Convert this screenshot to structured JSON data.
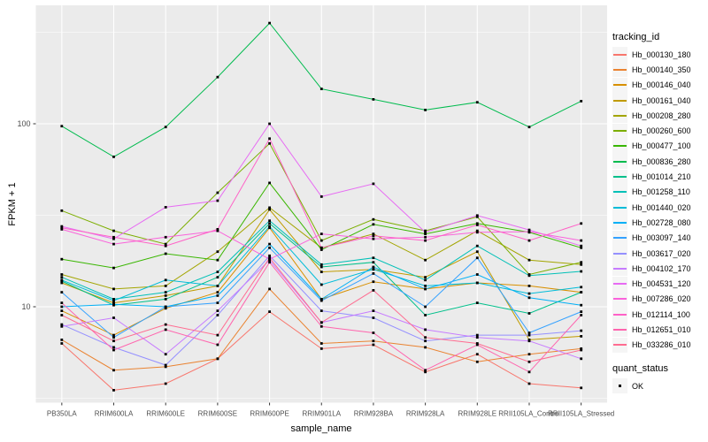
{
  "figure": {
    "background": "#FFFFFF",
    "panel_bg": "#EBEBEB",
    "grid_color": "#FFFFFF",
    "tick_color": "#333333",
    "tick_label_color": "#4D4D4D",
    "axis_title_color": "#000000",
    "point_color": "#000000"
  },
  "legend": {
    "tracking_title": "tracking_id",
    "quant_title": "quant_status",
    "quant_items": [
      {
        "label": "OK"
      }
    ]
  },
  "chart_data": {
    "type": "line",
    "title": "",
    "xlabel": "sample_name",
    "ylabel": "FPKM + 1",
    "y_scale": "log10",
    "ylim": [
      3,
      434
    ],
    "grid": true,
    "legend_position": "right",
    "point_shape": "square",
    "y_major_ticks": [
      {
        "label": "10",
        "value": 10
      },
      {
        "label": "100",
        "value": 100
      }
    ],
    "y_minor_gridlines": [
      3.162,
      31.623,
      316.228
    ],
    "categories": [
      "PB350LA",
      "RRIM600LA",
      "RRIM600LE",
      "RRIM600SE",
      "RRIM600PE",
      "RRIM901LA",
      "RRIM928BA",
      "RRIM928LA",
      "RRIM928LE",
      "RRII105LA_Control",
      "RRII105LA_Stressed"
    ],
    "series": [
      {
        "name": "Hb_000130_180",
        "color": "#F8766D",
        "values": [
          6.3,
          3.5,
          3.8,
          5.2,
          9.4,
          5.9,
          6.2,
          4.4,
          5.5,
          3.8,
          3.6
        ]
      },
      {
        "name": "Hb_000140_350",
        "color": "#EA8331",
        "values": [
          6.6,
          4.5,
          4.7,
          5.2,
          12.5,
          6.3,
          6.5,
          6.0,
          5.0,
          5.5,
          5.9
        ]
      },
      {
        "name": "Hb_000146_040",
        "color": "#D89000",
        "values": [
          9.5,
          7.0,
          9.8,
          12.0,
          27.0,
          11.0,
          13.7,
          12.5,
          13.5,
          13.0,
          12.0
        ]
      },
      {
        "name": "Hb_000161_040",
        "color": "#C09B00",
        "values": [
          13.5,
          10.5,
          11.5,
          13.0,
          34.0,
          15.5,
          16.0,
          14.5,
          20.0,
          6.6,
          6.9
        ]
      },
      {
        "name": "Hb_000208_280",
        "color": "#A3A500",
        "values": [
          15.0,
          12.5,
          13.0,
          20.0,
          34.8,
          21.0,
          25.0,
          18.0,
          26.0,
          18.0,
          17.0
        ]
      },
      {
        "name": "Hb_000260_600",
        "color": "#7CAE00",
        "values": [
          33.5,
          26.0,
          22.0,
          42.0,
          78.0,
          23.0,
          30.0,
          26.0,
          31.0,
          15.0,
          17.5
        ]
      },
      {
        "name": "Hb_000477_100",
        "color": "#39B600",
        "values": [
          18.2,
          16.3,
          19.5,
          18.0,
          47.5,
          20.5,
          28.2,
          25.0,
          28.5,
          25.5,
          21.0
        ]
      },
      {
        "name": "Hb_000836_280",
        "color": "#00BB4E",
        "values": [
          97,
          66,
          96,
          180,
          355,
          155,
          136,
          119,
          131,
          96,
          133
        ]
      },
      {
        "name": "Hb_001014_210",
        "color": "#00C08B",
        "values": [
          13.8,
          10.2,
          11.0,
          14.5,
          28.5,
          16.5,
          17.5,
          9.0,
          10.5,
          9.2,
          12.0
        ]
      },
      {
        "name": "Hb_001258_110",
        "color": "#00C0B7",
        "values": [
          14.5,
          11.0,
          12.0,
          15.5,
          29.5,
          17.0,
          18.5,
          14.0,
          21.5,
          14.8,
          15.6
        ]
      },
      {
        "name": "Hb_001440_020",
        "color": "#00BCD8",
        "values": [
          14.0,
          10.8,
          14.0,
          13.0,
          27.5,
          13.2,
          16.0,
          13.0,
          13.5,
          11.8,
          12.8
        ]
      },
      {
        "name": "Hb_002728_080",
        "color": "#00B0F6",
        "values": [
          10.0,
          10.3,
          10.0,
          11.5,
          22.0,
          11.0,
          16.5,
          12.5,
          15.0,
          11.2,
          10.2
        ]
      },
      {
        "name": "Hb_003097_140",
        "color": "#35A2FF",
        "values": [
          12.0,
          6.8,
          10.0,
          10.5,
          21.0,
          10.8,
          15.2,
          10.0,
          18.5,
          7.2,
          9.4
        ]
      },
      {
        "name": "Hb_003617_020",
        "color": "#9590FF",
        "values": [
          8.0,
          6.0,
          4.8,
          9.0,
          19.0,
          9.5,
          8.7,
          6.5,
          7.0,
          7.0,
          7.4
        ]
      },
      {
        "name": "Hb_004102_170",
        "color": "#C77CFF",
        "values": [
          7.8,
          8.7,
          5.5,
          9.5,
          18.0,
          8.2,
          9.5,
          7.5,
          6.8,
          6.5,
          5.2
        ]
      },
      {
        "name": "Hb_004531_120",
        "color": "#E76BF3",
        "values": [
          27.5,
          23.5,
          35.0,
          38.0,
          100,
          40.0,
          47.0,
          25.5,
          31.5,
          26.3,
          21.5
        ]
      },
      {
        "name": "Hb_007286_020",
        "color": "#FA62DB",
        "values": [
          26.5,
          22.0,
          24.0,
          26.0,
          18.2,
          25.0,
          23.5,
          24.0,
          25.5,
          25.7,
          23.0
        ]
      },
      {
        "name": "Hb_012114_100",
        "color": "#FF61C7",
        "values": [
          27.0,
          24.0,
          21.5,
          26.5,
          83.0,
          21.0,
          24.4,
          23.0,
          28.0,
          23.0,
          28.5
        ]
      },
      {
        "name": "Hb_012651_010",
        "color": "#FF65AE",
        "values": [
          10.5,
          5.8,
          7.5,
          6.2,
          17.5,
          7.8,
          7.2,
          4.5,
          6.2,
          4.4,
          9.0
        ]
      },
      {
        "name": "Hb_033286_010",
        "color": "#FF6C91",
        "values": [
          9.0,
          6.5,
          8.0,
          7.0,
          18.5,
          8.2,
          12.3,
          6.8,
          6.3,
          5.0,
          5.8
        ]
      }
    ]
  }
}
